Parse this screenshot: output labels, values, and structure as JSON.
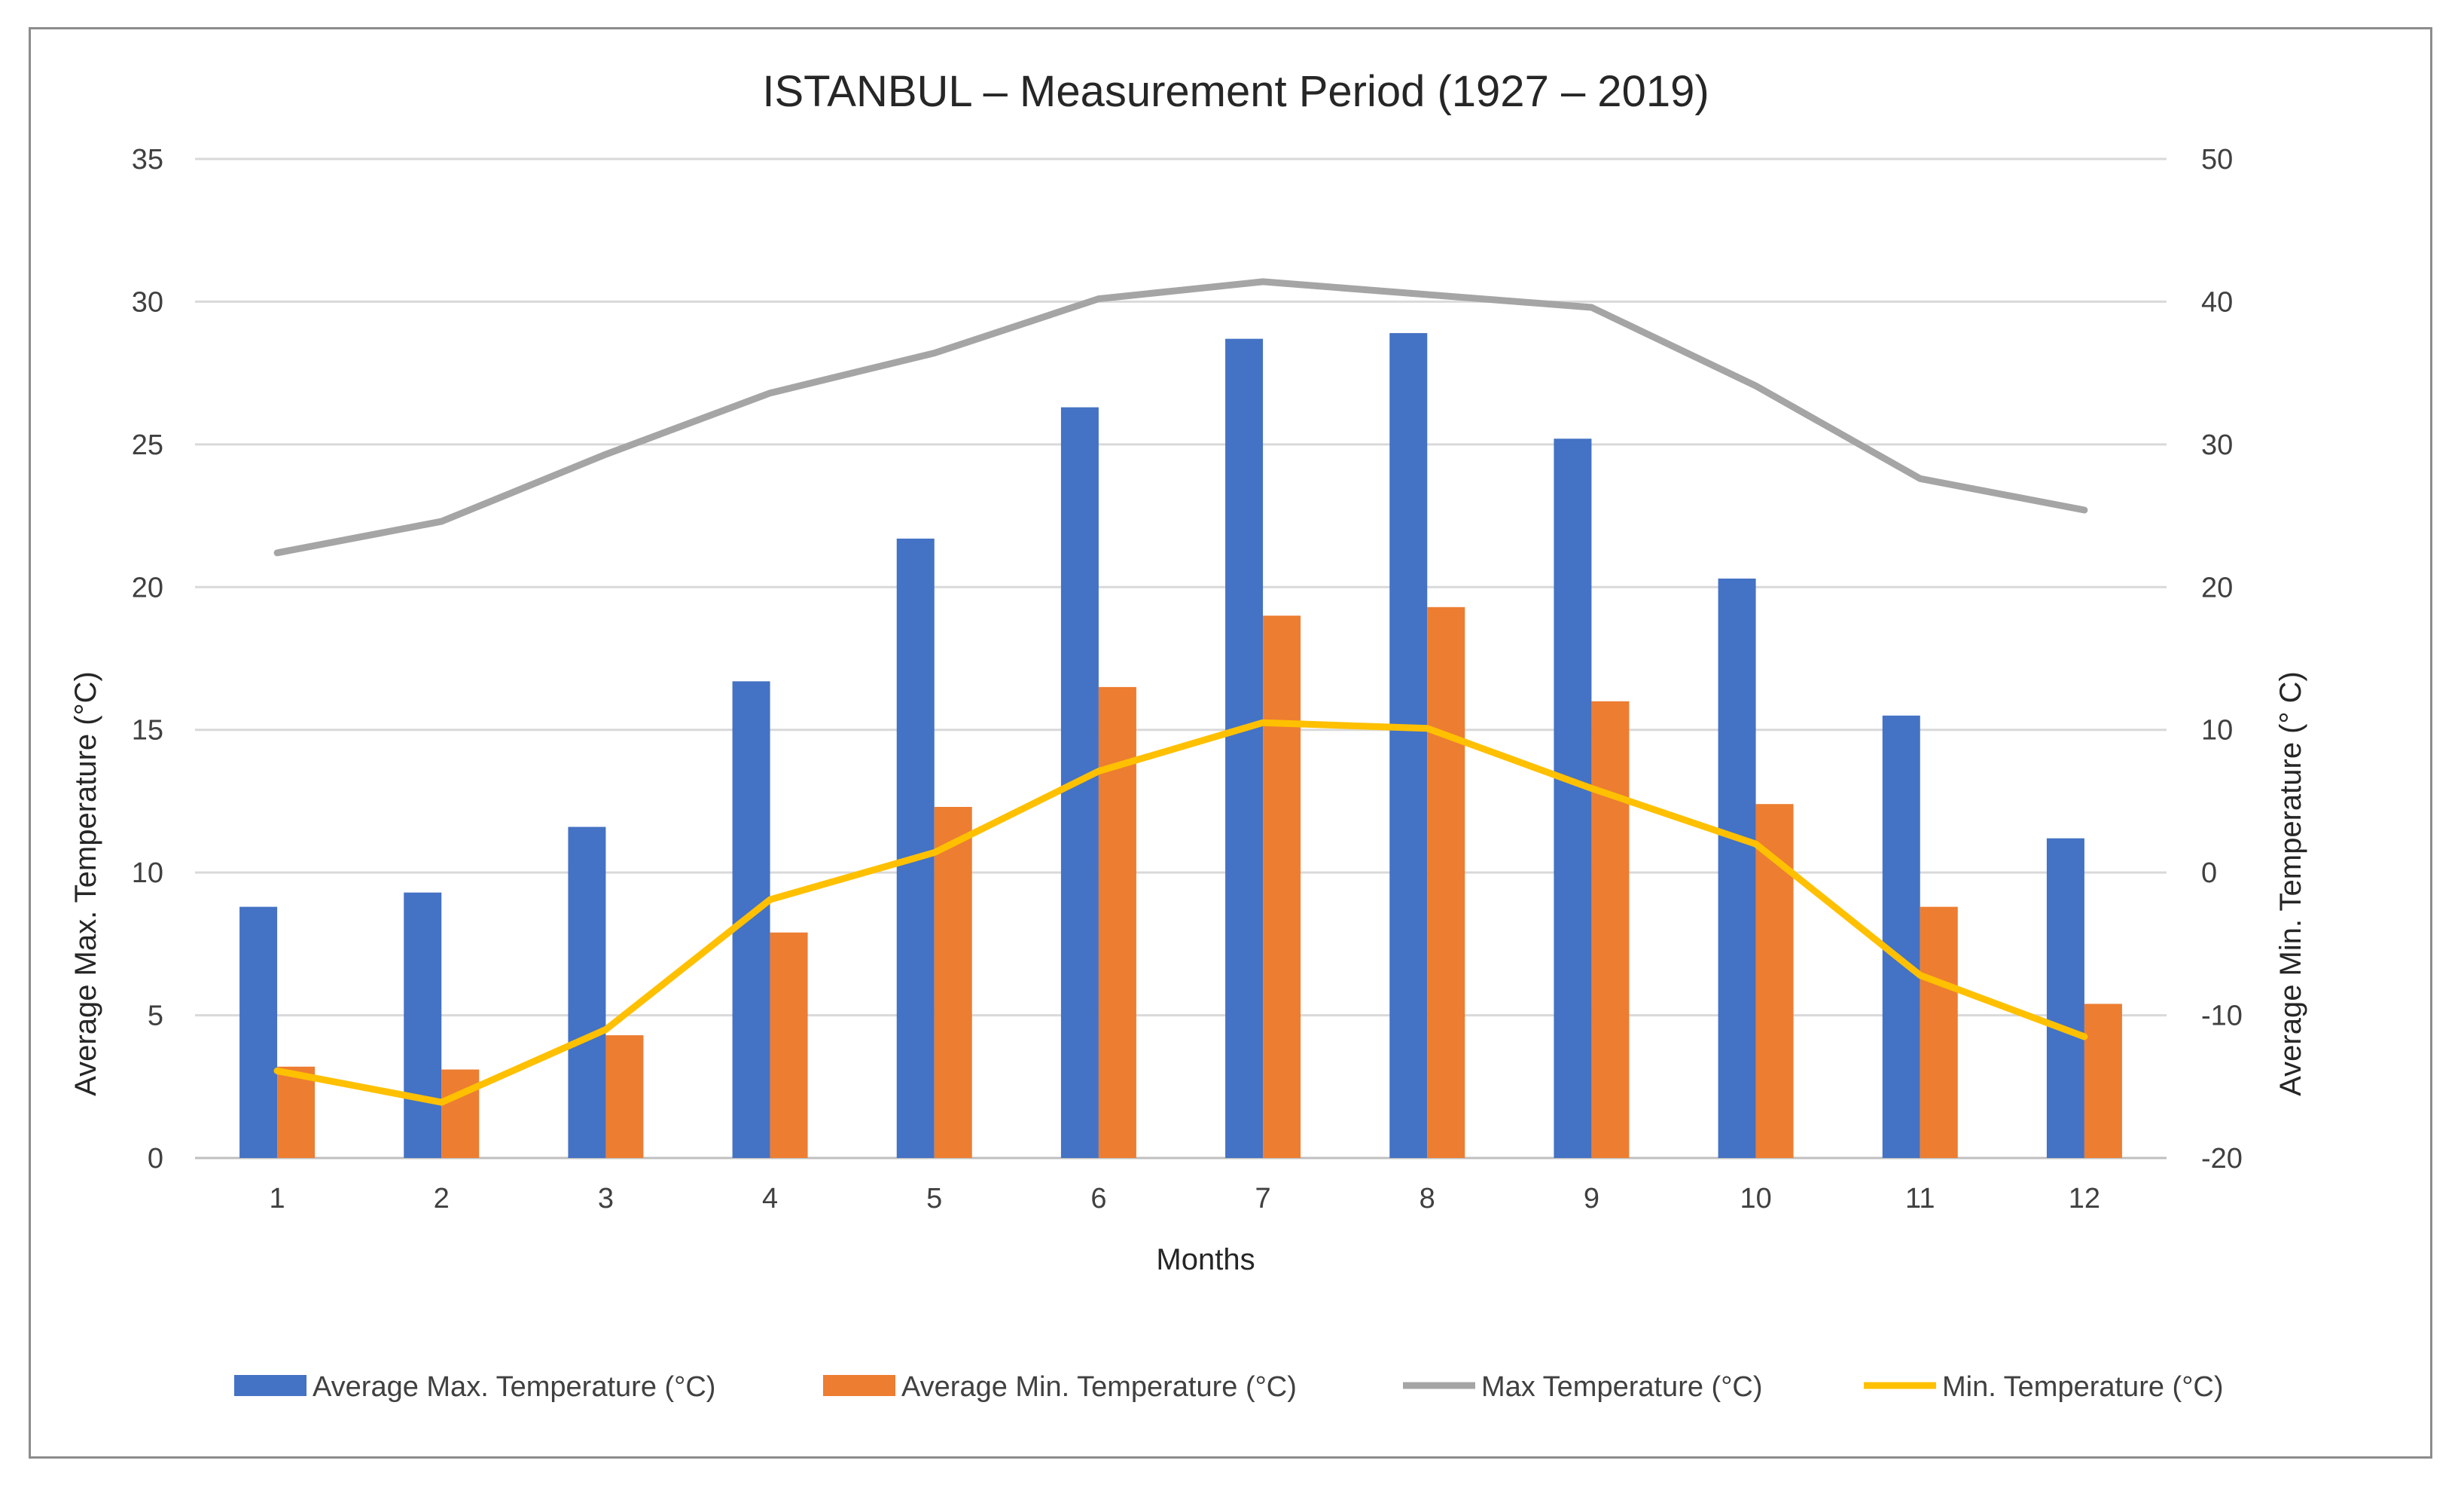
{
  "chart_data": {
    "type": "bar",
    "title": "ISTANBUL – Measurement Period (1927 – 2019)",
    "xlabel": "Months",
    "ylabel_left": "Average Max. Temperature (°C)",
    "ylabel_right": "Average Min. Temperature (° C)",
    "categories": [
      "1",
      "2",
      "3",
      "4",
      "5",
      "6",
      "7",
      "8",
      "9",
      "10",
      "11",
      "12"
    ],
    "ylim_left": [
      0,
      35
    ],
    "yticks_left": [
      "0",
      "5",
      "10",
      "15",
      "20",
      "25",
      "30",
      "35"
    ],
    "ylim_right": [
      -20,
      50
    ],
    "yticks_right": [
      "-20",
      "-10",
      "0",
      "10",
      "20",
      "30",
      "40",
      "50"
    ],
    "grid": true,
    "legend_position": "bottom",
    "series": [
      {
        "name": "Average Max. Temperature (°C)",
        "type": "bar",
        "axis": "left",
        "color": "#4472c4",
        "values": [
          8.8,
          9.3,
          11.6,
          16.7,
          21.7,
          26.3,
          28.7,
          28.9,
          25.2,
          20.3,
          15.5,
          11.2
        ]
      },
      {
        "name": "Average Min. Temperature (°C)",
        "type": "bar",
        "axis": "left",
        "color": "#ed7d31",
        "values": [
          3.2,
          3.1,
          4.3,
          7.9,
          12.3,
          16.5,
          19.0,
          19.3,
          16.0,
          12.4,
          8.8,
          5.4
        ]
      },
      {
        "name": "Max Temperature (°C)",
        "type": "line",
        "axis": "right",
        "color": "#a5a5a5",
        "values": [
          22.4,
          24.6,
          29.3,
          33.6,
          36.4,
          40.2,
          41.4,
          40.5,
          39.6,
          34.1,
          27.6,
          25.4
        ]
      },
      {
        "name": "Min. Temperature (°C)",
        "type": "line",
        "axis": "right",
        "color": "#ffc000",
        "values": [
          -13.9,
          -16.1,
          -11.0,
          -1.9,
          1.4,
          7.1,
          10.5,
          10.1,
          5.9,
          2.0,
          -7.2,
          -11.5
        ]
      }
    ]
  }
}
